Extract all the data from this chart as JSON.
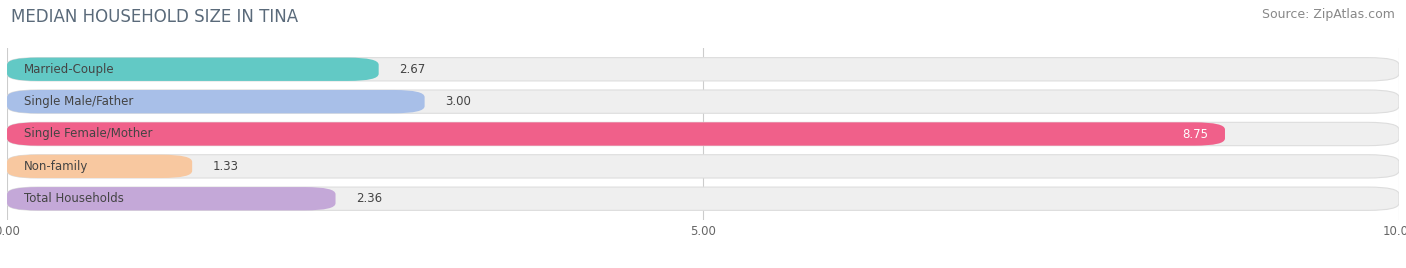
{
  "title": "MEDIAN HOUSEHOLD SIZE IN TINA",
  "source": "Source: ZipAtlas.com",
  "categories": [
    "Married-Couple",
    "Single Male/Father",
    "Single Female/Mother",
    "Non-family",
    "Total Households"
  ],
  "values": [
    2.67,
    3.0,
    8.75,
    1.33,
    2.36
  ],
  "bar_colors": [
    "#62c9c5",
    "#a8bfe8",
    "#f0608a",
    "#f8c8a0",
    "#c4a8d8"
  ],
  "bar_bg_color": "#efefef",
  "bar_border_color": "#dddddd",
  "xlim": [
    0,
    10
  ],
  "xticks": [
    0.0,
    5.0,
    10.0
  ],
  "xtick_labels": [
    "0.00",
    "5.00",
    "10.00"
  ],
  "title_fontsize": 12,
  "source_fontsize": 9,
  "label_fontsize": 8.5,
  "value_fontsize": 8.5,
  "title_color": "#5a6a7a",
  "source_color": "#888888",
  "label_color": "#444444",
  "value_color": "#444444",
  "background_color": "#ffffff",
  "grid_color": "#cccccc"
}
